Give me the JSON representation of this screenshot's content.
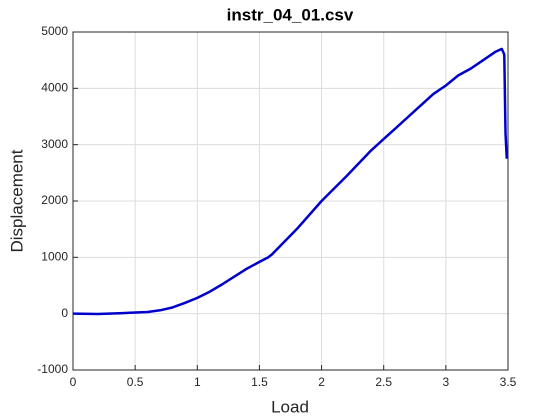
{
  "chart_data": {
    "type": "line",
    "title": "instr_04_01.csv",
    "x_label": "Load",
    "y_label": "Displacement",
    "x": [
      0,
      0.2,
      0.4,
      0.6,
      0.7,
      0.8,
      0.9,
      1.0,
      1.1,
      1.2,
      1.3,
      1.4,
      1.5,
      1.57,
      1.6,
      1.8,
      2.0,
      2.2,
      2.4,
      2.6,
      2.8,
      2.9,
      3.0,
      3.1,
      3.2,
      3.3,
      3.4,
      3.45,
      3.47,
      3.48,
      3.49
    ],
    "series": [
      {
        "name": "Displacement",
        "color": "#0000cd",
        "values": [
          0,
          -5,
          10,
          30,
          60,
          110,
          190,
          280,
          390,
          520,
          660,
          800,
          920,
          1000,
          1050,
          1500,
          2000,
          2440,
          2900,
          3300,
          3700,
          3900,
          4050,
          4230,
          4350,
          4500,
          4650,
          4700,
          4600,
          3200,
          2750
        ]
      }
    ],
    "xlim": [
      0,
      3.5
    ],
    "ylim": [
      -1000,
      5000
    ],
    "xticks": [
      0,
      0.5,
      1,
      1.5,
      2,
      2.5,
      3,
      3.5
    ],
    "yticks": [
      -1000,
      0,
      1000,
      2000,
      3000,
      4000,
      5000
    ],
    "grid": true
  }
}
